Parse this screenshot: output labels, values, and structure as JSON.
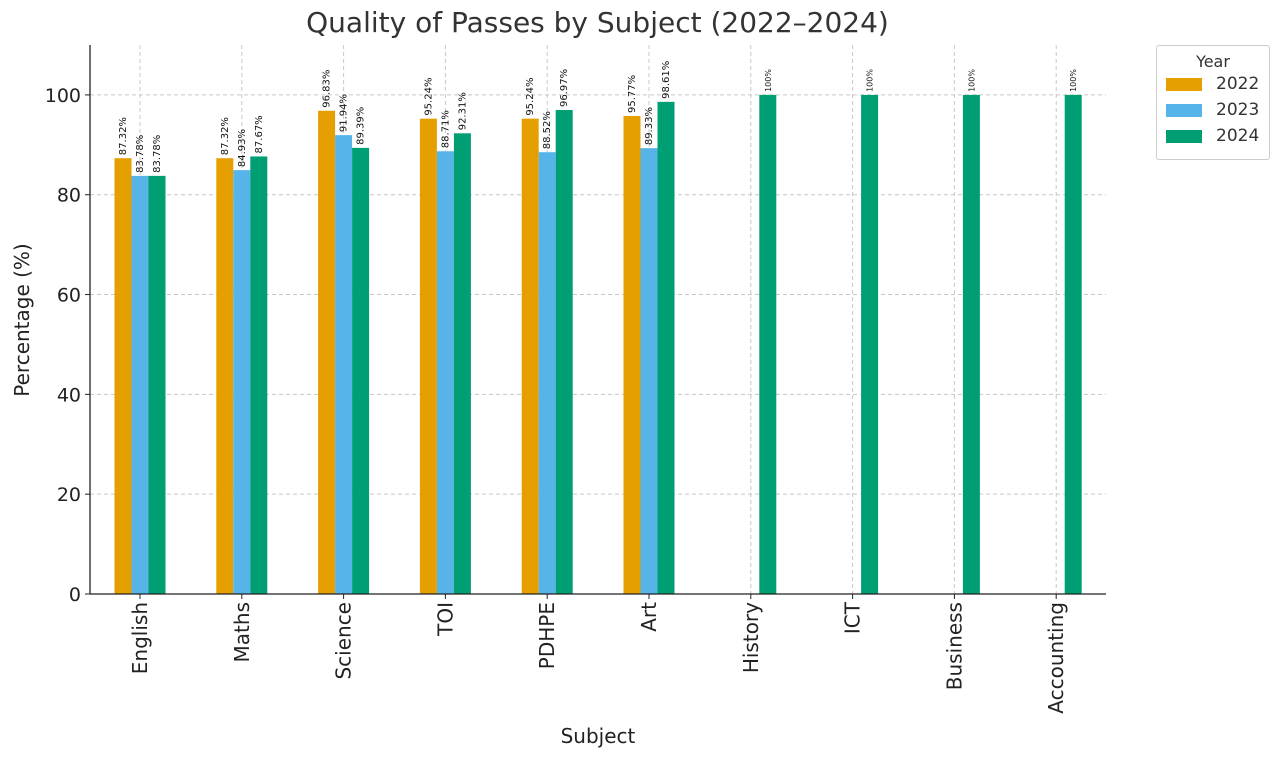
{
  "chart_data": {
    "type": "bar",
    "title": "Quality of Passes by Subject (2022–2024)",
    "xlabel": "Subject",
    "ylabel": "Percentage (%)",
    "ylim": [
      0,
      110
    ],
    "yticks": [
      0,
      20,
      40,
      60,
      80,
      100
    ],
    "grid": true,
    "legend_title": "Year",
    "legend_position": "upper right outside",
    "categories": [
      "English",
      "Maths",
      "Science",
      "TOI",
      "PDHPE",
      "Art",
      "History",
      "ICT",
      "Business",
      "Accounting"
    ],
    "series": [
      {
        "name": "2022",
        "color": "#E69F00",
        "values": [
          87.32,
          87.32,
          96.83,
          95.24,
          95.24,
          95.77,
          null,
          null,
          null,
          null
        ],
        "labels": [
          "87.32%",
          "87.32%",
          "96.83%",
          "95.24%",
          "95.24%",
          "95.77%",
          null,
          null,
          null,
          null
        ]
      },
      {
        "name": "2023",
        "color": "#56B4E9",
        "values": [
          83.78,
          84.93,
          91.94,
          88.71,
          88.52,
          89.33,
          null,
          null,
          null,
          null
        ],
        "labels": [
          "83.78%",
          "84.93%",
          "91.94%",
          "88.71%",
          "88.52%",
          "89.33%",
          null,
          null,
          null,
          null
        ]
      },
      {
        "name": "2024",
        "color": "#009E73",
        "values": [
          83.78,
          87.67,
          89.39,
          92.31,
          96.97,
          98.61,
          100,
          100,
          100,
          100
        ],
        "labels": [
          "83.78%",
          "87.67%",
          "89.39%",
          "92.31%",
          "96.97%",
          "98.61%",
          "100%",
          "100%",
          "100%",
          "100%"
        ]
      }
    ]
  }
}
